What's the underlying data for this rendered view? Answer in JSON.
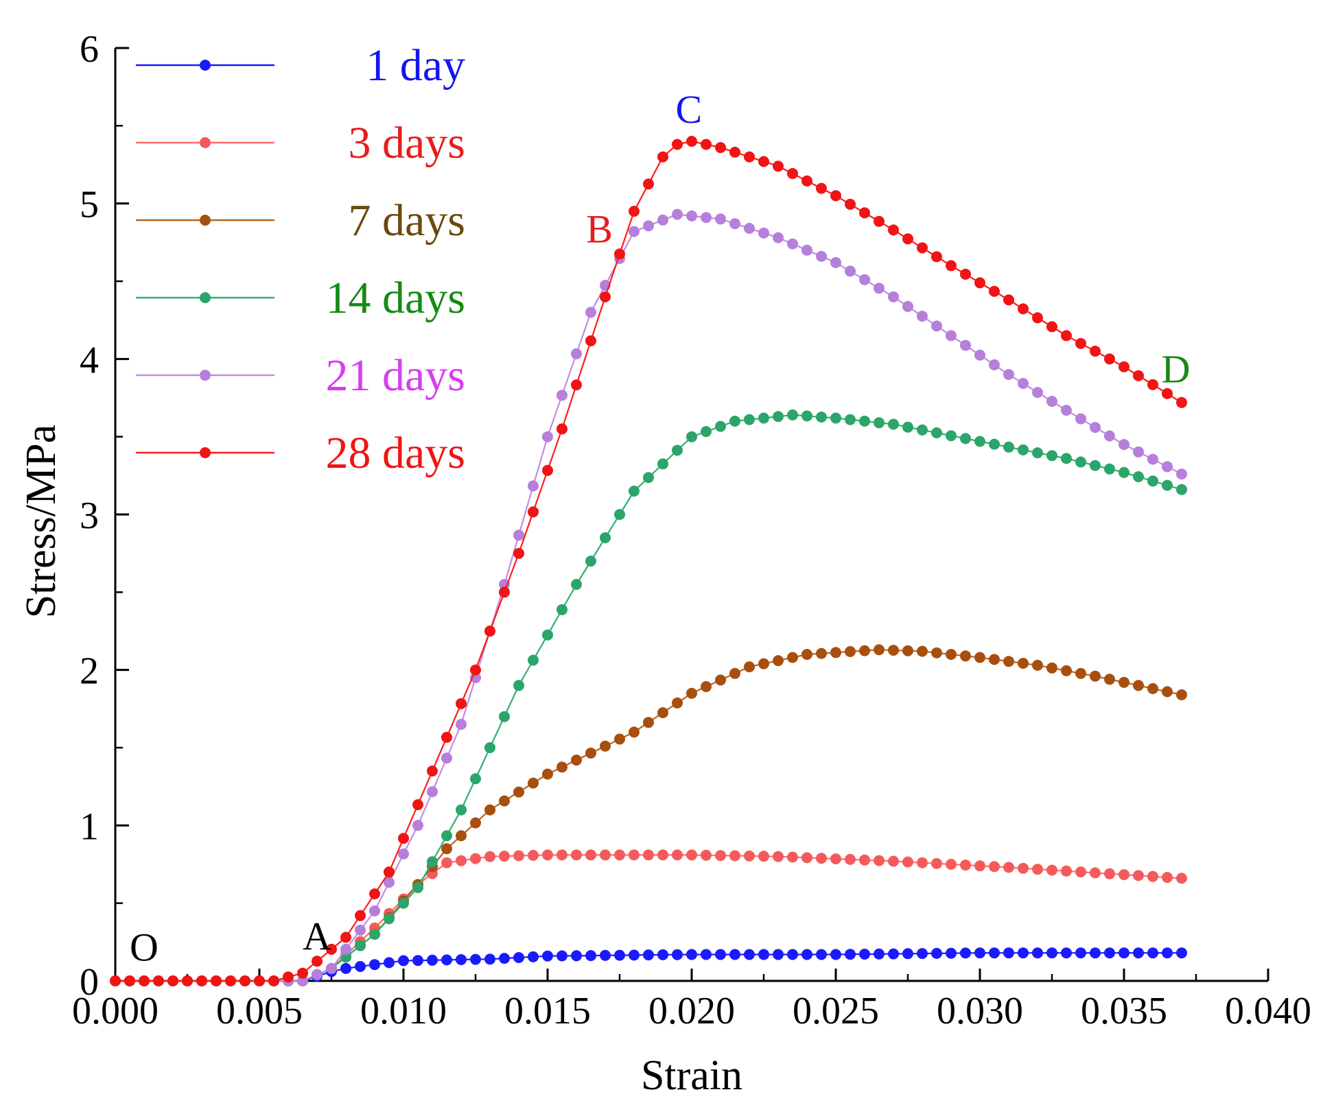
{
  "chart_data": {
    "type": "line",
    "title": "",
    "xlabel": "Strain",
    "ylabel": "Stress/MPa",
    "xlim": [
      0.0,
      0.04
    ],
    "ylim": [
      0,
      6
    ],
    "x_ticks": [
      "0.000",
      "0.005",
      "0.010",
      "0.015",
      "0.020",
      "0.025",
      "0.030",
      "0.035",
      "0.040"
    ],
    "y_ticks": [
      "0",
      "1",
      "2",
      "3",
      "4",
      "5",
      "6"
    ],
    "x_end": 0.037,
    "legend_position": "top-left",
    "series": [
      {
        "name": "1 day",
        "line_color": "#1a1aff",
        "marker_color": "#1a1aff",
        "label_color": "#1515f0",
        "knots": [
          [
            0.0,
            0.0
          ],
          [
            0.0065,
            0.0
          ],
          [
            0.0075,
            0.06
          ],
          [
            0.008,
            0.08
          ],
          [
            0.01,
            0.13
          ],
          [
            0.013,
            0.14
          ],
          [
            0.015,
            0.16
          ],
          [
            0.02,
            0.17
          ],
          [
            0.025,
            0.17
          ],
          [
            0.03,
            0.18
          ],
          [
            0.037,
            0.18
          ]
        ]
      },
      {
        "name": "3 days",
        "line_color": "#ff6b6b",
        "marker_color": "#f55a5a",
        "label_color": "#e81c1c",
        "knots": [
          [
            0.0,
            0.0
          ],
          [
            0.0065,
            0.0
          ],
          [
            0.0075,
            0.08
          ],
          [
            0.009,
            0.34
          ],
          [
            0.0105,
            0.62
          ],
          [
            0.0115,
            0.76
          ],
          [
            0.013,
            0.8
          ],
          [
            0.015,
            0.81
          ],
          [
            0.02,
            0.81
          ],
          [
            0.023,
            0.8
          ],
          [
            0.027,
            0.77
          ],
          [
            0.031,
            0.73
          ],
          [
            0.037,
            0.66
          ]
        ]
      },
      {
        "name": "7 days",
        "line_color": "#b5651d",
        "marker_color": "#a84f0f",
        "label_color": "#6b4a10",
        "knots": [
          [
            0.0,
            0.0
          ],
          [
            0.0065,
            0.0
          ],
          [
            0.0075,
            0.08
          ],
          [
            0.009,
            0.3
          ],
          [
            0.0105,
            0.62
          ],
          [
            0.0115,
            0.85
          ],
          [
            0.013,
            1.1
          ],
          [
            0.015,
            1.33
          ],
          [
            0.018,
            1.6
          ],
          [
            0.02,
            1.85
          ],
          [
            0.022,
            2.02
          ],
          [
            0.024,
            2.1
          ],
          [
            0.0265,
            2.13
          ],
          [
            0.028,
            2.12
          ],
          [
            0.03,
            2.08
          ],
          [
            0.032,
            2.03
          ],
          [
            0.034,
            1.96
          ],
          [
            0.037,
            1.84
          ]
        ]
      },
      {
        "name": "14 days",
        "line_color": "#2eb073",
        "marker_color": "#2ba56a",
        "label_color": "#168a16",
        "knots": [
          [
            0.0,
            0.0
          ],
          [
            0.0065,
            0.0
          ],
          [
            0.0075,
            0.08
          ],
          [
            0.009,
            0.3
          ],
          [
            0.0105,
            0.6
          ],
          [
            0.012,
            1.1
          ],
          [
            0.014,
            1.9
          ],
          [
            0.016,
            2.55
          ],
          [
            0.018,
            3.15
          ],
          [
            0.02,
            3.5
          ],
          [
            0.0215,
            3.6
          ],
          [
            0.0235,
            3.64
          ],
          [
            0.025,
            3.62
          ],
          [
            0.027,
            3.58
          ],
          [
            0.03,
            3.47
          ],
          [
            0.033,
            3.36
          ],
          [
            0.035,
            3.27
          ],
          [
            0.037,
            3.16
          ]
        ]
      },
      {
        "name": "21 days",
        "line_color": "#c48ae0",
        "marker_color": "#b57fdb",
        "label_color": "#d63ef0",
        "knots": [
          [
            0.0,
            0.0
          ],
          [
            0.0065,
            0.0
          ],
          [
            0.0075,
            0.08
          ],
          [
            0.009,
            0.45
          ],
          [
            0.0105,
            1.0
          ],
          [
            0.012,
            1.65
          ],
          [
            0.0135,
            2.55
          ],
          [
            0.015,
            3.5
          ],
          [
            0.0165,
            4.3
          ],
          [
            0.018,
            4.82
          ],
          [
            0.0195,
            4.93
          ],
          [
            0.021,
            4.9
          ],
          [
            0.023,
            4.78
          ],
          [
            0.025,
            4.62
          ],
          [
            0.027,
            4.4
          ],
          [
            0.029,
            4.15
          ],
          [
            0.031,
            3.9
          ],
          [
            0.033,
            3.67
          ],
          [
            0.035,
            3.45
          ],
          [
            0.037,
            3.26
          ]
        ]
      },
      {
        "name": "28 days",
        "line_color": "#ff1a1a",
        "marker_color": "#f01414",
        "label_color": "#f01414",
        "knots": [
          [
            0.0,
            0.0
          ],
          [
            0.0055,
            0.0
          ],
          [
            0.0065,
            0.05
          ],
          [
            0.008,
            0.28
          ],
          [
            0.0095,
            0.7
          ],
          [
            0.011,
            1.35
          ],
          [
            0.0125,
            2.0
          ],
          [
            0.014,
            2.75
          ],
          [
            0.0155,
            3.55
          ],
          [
            0.017,
            4.4
          ],
          [
            0.018,
            4.95
          ],
          [
            0.019,
            5.3
          ],
          [
            0.0195,
            5.38
          ],
          [
            0.02,
            5.4
          ],
          [
            0.021,
            5.36
          ],
          [
            0.023,
            5.24
          ],
          [
            0.025,
            5.05
          ],
          [
            0.027,
            4.83
          ],
          [
            0.029,
            4.6
          ],
          [
            0.031,
            4.38
          ],
          [
            0.033,
            4.15
          ],
          [
            0.035,
            3.95
          ],
          [
            0.037,
            3.72
          ]
        ]
      }
    ],
    "annotations": [
      {
        "text": "O",
        "x": 0.001,
        "y": 0.13,
        "color": "#000000"
      },
      {
        "text": "A",
        "x": 0.007,
        "y": 0.2,
        "color": "#000000"
      },
      {
        "text": "B",
        "x": 0.0168,
        "y": 4.75,
        "color": "#e81c1c"
      },
      {
        "text": "C",
        "x": 0.0199,
        "y": 5.52,
        "color": "#1515f0"
      },
      {
        "text": "D",
        "x": 0.0368,
        "y": 3.85,
        "color": "#168a16"
      }
    ]
  }
}
